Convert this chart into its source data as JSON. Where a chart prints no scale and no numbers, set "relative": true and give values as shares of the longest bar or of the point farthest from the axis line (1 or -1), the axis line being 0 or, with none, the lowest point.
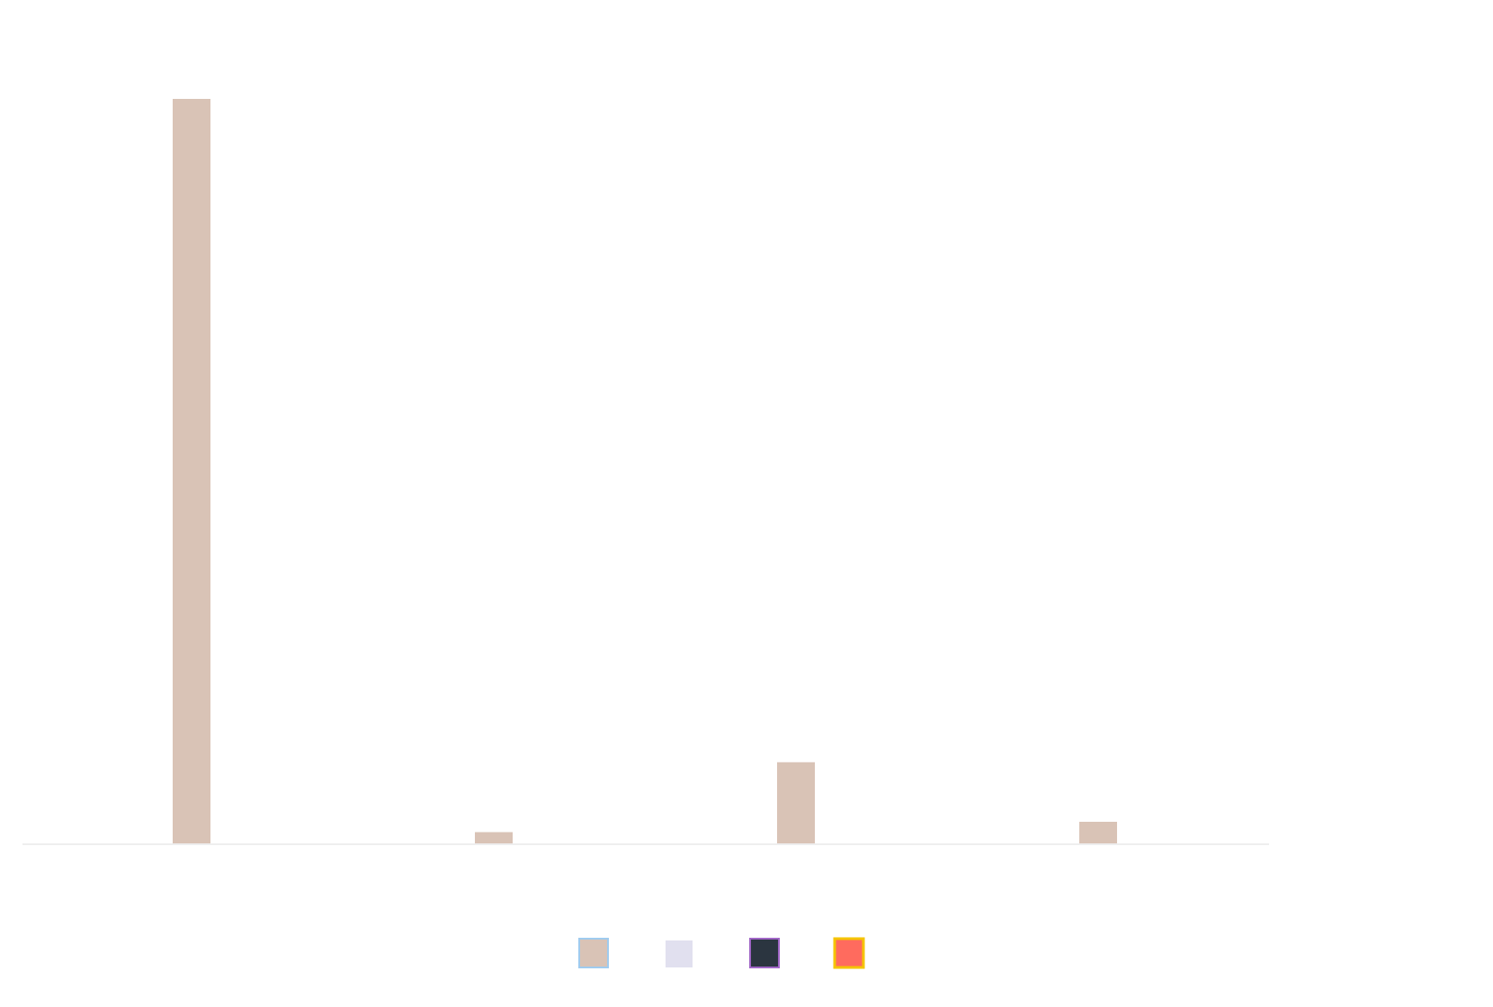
{
  "chart_data": {
    "type": "bar",
    "categories": [
      null,
      null,
      null,
      null
    ],
    "relative": true,
    "color": "#d9c3b6",
    "values": [
      1,
      0.015,
      0.109,
      0.029
    ]
  }
}
